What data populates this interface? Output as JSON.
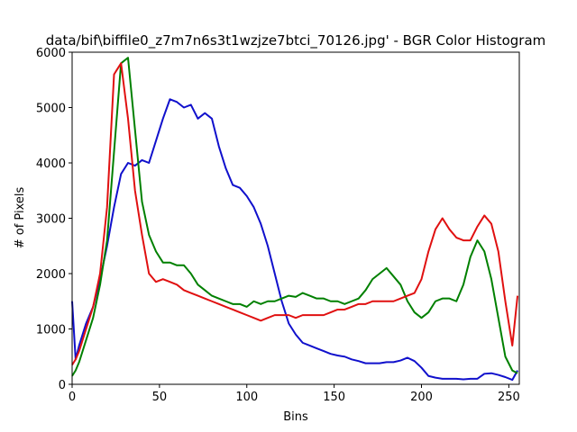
{
  "chart_data": {
    "type": "line",
    "title": "data/bif\\biffile0_z7m7n6s3t1wzjze7btci_70126.jpg' - BGR Color Histogram",
    "x_label": "Bins",
    "y_label": "# of Pixels",
    "x": [
      0,
      2,
      4,
      8,
      12,
      16,
      20,
      24,
      28,
      32,
      36,
      40,
      44,
      48,
      52,
      56,
      60,
      64,
      68,
      72,
      76,
      80,
      84,
      88,
      92,
      96,
      100,
      104,
      108,
      112,
      116,
      120,
      124,
      128,
      132,
      136,
      140,
      144,
      148,
      152,
      156,
      160,
      164,
      168,
      172,
      176,
      180,
      184,
      188,
      192,
      196,
      200,
      204,
      208,
      212,
      216,
      220,
      224,
      228,
      232,
      236,
      240,
      244,
      248,
      252,
      255
    ],
    "series": [
      {
        "name": "b",
        "color": "#1010cc",
        "values": [
          1500,
          450,
          700,
          1100,
          1400,
          1900,
          2500,
          3200,
          3800,
          4000,
          3950,
          4050,
          4000,
          4400,
          4800,
          5150,
          5100,
          5000,
          5050,
          4800,
          4900,
          4800,
          4300,
          3900,
          3600,
          3550,
          3400,
          3200,
          2900,
          2500,
          2000,
          1500,
          1100,
          900,
          750,
          700,
          650,
          600,
          550,
          520,
          500,
          450,
          420,
          380,
          380,
          380,
          400,
          400,
          430,
          480,
          420,
          300,
          150,
          120,
          100,
          100,
          100,
          90,
          100,
          100,
          190,
          200,
          170,
          130,
          80,
          250
        ]
      },
      {
        "name": "g",
        "color": "#008000",
        "values": [
          150,
          250,
          400,
          800,
          1200,
          1800,
          2600,
          4200,
          5800,
          5900,
          4600,
          3300,
          2700,
          2400,
          2200,
          2200,
          2150,
          2150,
          2000,
          1800,
          1700,
          1600,
          1550,
          1500,
          1450,
          1450,
          1400,
          1500,
          1450,
          1500,
          1500,
          1550,
          1600,
          1580,
          1650,
          1600,
          1550,
          1550,
          1500,
          1500,
          1450,
          1500,
          1550,
          1700,
          1900,
          2000,
          2100,
          1950,
          1800,
          1500,
          1300,
          1200,
          1300,
          1500,
          1550,
          1550,
          1500,
          1800,
          2300,
          2600,
          2400,
          1900,
          1200,
          500,
          250,
          200
        ]
      },
      {
        "name": "r",
        "color": "#e01010",
        "values": [
          350,
          450,
          600,
          1000,
          1400,
          2000,
          3200,
          5600,
          5800,
          4800,
          3500,
          2700,
          2000,
          1850,
          1900,
          1850,
          1800,
          1700,
          1650,
          1600,
          1550,
          1500,
          1450,
          1400,
          1350,
          1300,
          1250,
          1200,
          1150,
          1200,
          1250,
          1250,
          1250,
          1200,
          1250,
          1250,
          1250,
          1250,
          1300,
          1350,
          1350,
          1400,
          1450,
          1450,
          1500,
          1500,
          1500,
          1500,
          1550,
          1600,
          1650,
          1900,
          2400,
          2800,
          3000,
          2800,
          2650,
          2600,
          2600,
          2850,
          3050,
          2900,
          2400,
          1500,
          700,
          1600
        ]
      }
    ],
    "xlim": [
      0,
      256
    ],
    "ylim": [
      0,
      6000
    ],
    "xticks": [
      0,
      50,
      100,
      150,
      200,
      250
    ],
    "yticks": [
      0,
      1000,
      2000,
      3000,
      4000,
      5000,
      6000
    ]
  }
}
